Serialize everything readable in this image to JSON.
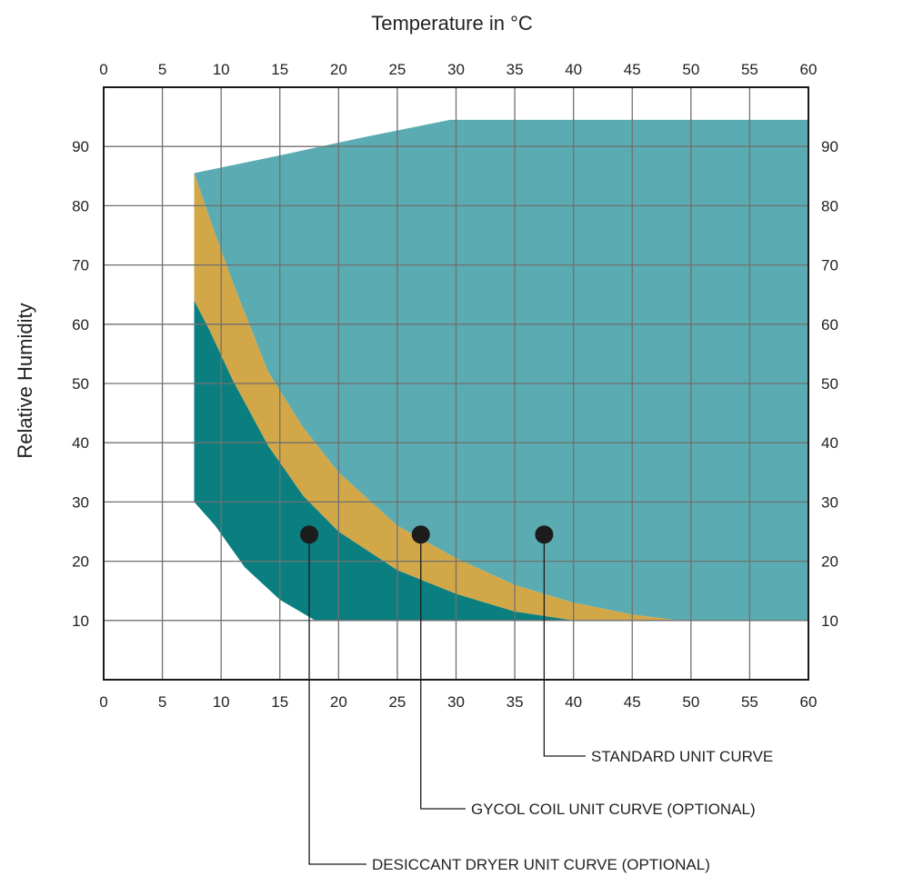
{
  "chart_data": {
    "type": "area",
    "title": "Temperature in °C",
    "xlabel": "",
    "ylabel": "Relative Humidity",
    "xlim": [
      0,
      60
    ],
    "ylim": [
      0,
      100
    ],
    "x_ticks": [
      0,
      5,
      10,
      15,
      20,
      25,
      30,
      35,
      40,
      45,
      50,
      55,
      60
    ],
    "y_ticks": [
      10,
      20,
      30,
      40,
      50,
      60,
      70,
      80,
      90
    ],
    "grid": true,
    "colors": {
      "standard": "#5aacb2",
      "glycol": "#d2a748",
      "desiccant": "#0b7f80",
      "marker": "#1c1c1c",
      "grid": "#707070"
    },
    "series": [
      {
        "name": "STANDARD UNIT CURVE",
        "boundary": [
          [
            7.7,
            85.5
          ],
          [
            15,
            88.5
          ],
          [
            22,
            91.5
          ],
          [
            29.5,
            94.5
          ],
          [
            60,
            94.5
          ],
          [
            60,
            10
          ],
          [
            49,
            10
          ],
          [
            45,
            11
          ],
          [
            40,
            13
          ],
          [
            35,
            16
          ],
          [
            30,
            20.5
          ],
          [
            25,
            26
          ],
          [
            20,
            35
          ],
          [
            17,
            42.5
          ],
          [
            14,
            52
          ],
          [
            11,
            67
          ],
          [
            9,
            78
          ],
          [
            7.7,
            85.5
          ]
        ],
        "marker": [
          37.5,
          24.5
        ]
      },
      {
        "name": "GYCOL COIL UNIT CURVE (OPTIONAL)",
        "boundary": [
          [
            7.7,
            85.5
          ],
          [
            9,
            78
          ],
          [
            11,
            67
          ],
          [
            14,
            52
          ],
          [
            17,
            42.5
          ],
          [
            20,
            35
          ],
          [
            25,
            26
          ],
          [
            30,
            20.5
          ],
          [
            35,
            16
          ],
          [
            40,
            13
          ],
          [
            45,
            11
          ],
          [
            49,
            10
          ],
          [
            40,
            10
          ],
          [
            35,
            11.5
          ],
          [
            30,
            14.5
          ],
          [
            25,
            18.5
          ],
          [
            20,
            25
          ],
          [
            17,
            31
          ],
          [
            14,
            39.5
          ],
          [
            11,
            50.5
          ],
          [
            9,
            59
          ],
          [
            7.7,
            64
          ]
        ],
        "marker": [
          27,
          24.5
        ]
      },
      {
        "name": "DESICCANT DRYER UNIT CURVE (OPTIONAL)",
        "boundary": [
          [
            7.7,
            64
          ],
          [
            9,
            59
          ],
          [
            11,
            50.5
          ],
          [
            14,
            39.5
          ],
          [
            17,
            31
          ],
          [
            20,
            25
          ],
          [
            25,
            18.5
          ],
          [
            30,
            14.5
          ],
          [
            35,
            11.5
          ],
          [
            40,
            10
          ],
          [
            18,
            10
          ],
          [
            15,
            13.5
          ],
          [
            12,
            19
          ],
          [
            9.5,
            26
          ],
          [
            7.7,
            30
          ]
        ],
        "marker": [
          17.5,
          24.5
        ]
      }
    ]
  }
}
